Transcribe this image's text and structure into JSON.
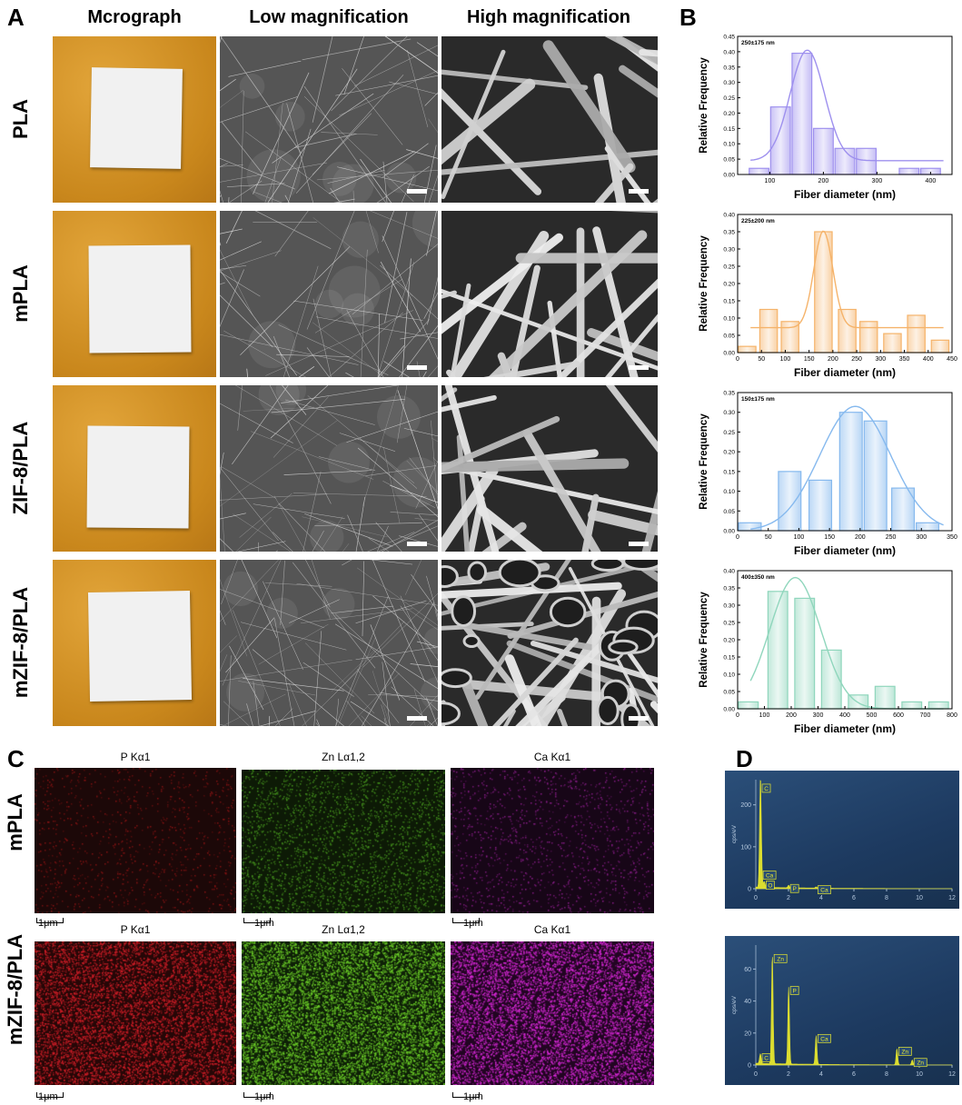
{
  "panel_letters": {
    "a": "A",
    "b": "B",
    "c": "C",
    "d": "D"
  },
  "panel_a": {
    "columns": [
      "Mcrograph",
      "Low magnification",
      "High magnification"
    ],
    "rows": [
      "PLA",
      "mPLA",
      "ZIF-8/PLA",
      "mZIF-8/PLA"
    ]
  },
  "panel_c": {
    "rows": [
      "mPLA",
      "mZIF-8/PLA"
    ],
    "maps": [
      "P Kα1",
      "Zn Lα1,2",
      "Ca Kα1"
    ],
    "scale_label": "1μm"
  },
  "chart_data": [
    {
      "type": "bar",
      "annotation": "250±175 nm",
      "xlabel": "Fiber diameter (nm)",
      "ylabel": "Relative Frequency",
      "color": "#9e90ee",
      "bin_width": 40,
      "x": [
        80,
        120,
        160,
        200,
        240,
        280,
        320,
        360,
        400
      ],
      "values": [
        0.02,
        0.22,
        0.395,
        0.15,
        0.085,
        0.085,
        0.0,
        0.02,
        0.02
      ],
      "xlim": [
        40,
        440
      ],
      "ylim": [
        0,
        0.45
      ],
      "xticks": [
        100,
        200,
        300,
        400
      ],
      "yticks": [
        0.0,
        0.05,
        0.1,
        0.15,
        0.2,
        0.25,
        0.3,
        0.35,
        0.4,
        0.45
      ],
      "fit": {
        "mu": 170,
        "sigma": 32,
        "amp": 0.36,
        "base": 0.045
      }
    },
    {
      "type": "bar",
      "annotation": "225±200 nm",
      "xlabel": "Fiber diameter (nm)",
      "ylabel": "Relative Frequency",
      "color": "#f5b36a",
      "bin_width": 40,
      "x": [
        20,
        65,
        110,
        180,
        230,
        275,
        325,
        375,
        425
      ],
      "values": [
        0.018,
        0.125,
        0.09,
        0.35,
        0.125,
        0.09,
        0.055,
        0.108,
        0.036
      ],
      "xlim": [
        0,
        450
      ],
      "ylim": [
        0,
        0.4
      ],
      "xticks": [
        0,
        50,
        100,
        150,
        200,
        250,
        300,
        350,
        400,
        450
      ],
      "yticks": [
        0.0,
        0.05,
        0.1,
        0.15,
        0.2,
        0.25,
        0.3,
        0.35,
        0.4
      ],
      "fit": {
        "mu": 180,
        "sigma": 20,
        "amp": 0.28,
        "base": 0.072
      }
    },
    {
      "type": "bar",
      "annotation": "150±175 nm",
      "xlabel": "Fiber diameter (nm)",
      "ylabel": "Relative Frequency",
      "color": "#86b9ee",
      "bin_width": 40,
      "x": [
        20,
        85,
        135,
        185,
        225,
        270,
        310
      ],
      "values": [
        0.02,
        0.15,
        0.128,
        0.3,
        0.278,
        0.108,
        0.02
      ],
      "xlim": [
        0,
        350
      ],
      "ylim": [
        0,
        0.35
      ],
      "xticks": [
        0,
        50,
        100,
        150,
        200,
        250,
        300,
        350
      ],
      "yticks": [
        0.0,
        0.05,
        0.1,
        0.15,
        0.2,
        0.25,
        0.3,
        0.35
      ],
      "fit": {
        "mu": 192,
        "sigma": 58,
        "amp": 0.315,
        "base": 0.0
      }
    },
    {
      "type": "bar",
      "annotation": "400±350 nm",
      "xlabel": "Fiber diameter (nm)",
      "ylabel": "Relative Frequency",
      "color": "#8fd6bc",
      "bin_width": 80,
      "x": [
        40,
        150,
        250,
        350,
        450,
        550,
        650,
        750
      ],
      "values": [
        0.02,
        0.34,
        0.32,
        0.17,
        0.04,
        0.065,
        0.02,
        0.02
      ],
      "xlim": [
        0,
        800
      ],
      "ylim": [
        0,
        0.4
      ],
      "xticks": [
        0,
        100,
        200,
        300,
        400,
        500,
        600,
        700,
        800
      ],
      "yticks": [
        0.0,
        0.05,
        0.1,
        0.15,
        0.2,
        0.25,
        0.3,
        0.35,
        0.4
      ],
      "fit": {
        "mu": 215,
        "sigma": 95,
        "amp": 0.38,
        "base": 0.0
      }
    },
    {
      "type": "line",
      "ylabel": "cps/eV",
      "xlim": [
        0,
        12
      ],
      "ylim": [
        0,
        260
      ],
      "xticks": [
        0,
        2,
        4,
        6,
        8,
        10,
        12
      ],
      "yticks": [
        0,
        100,
        200
      ],
      "color": "#e6e62e",
      "peaks": [
        {
          "label": "C",
          "x": 0.28,
          "y": 245
        },
        {
          "label": "Ca",
          "x": 0.34,
          "y": 38
        },
        {
          "label": "O",
          "x": 0.52,
          "y": 14
        },
        {
          "label": "P",
          "x": 2.01,
          "y": 6
        },
        {
          "label": "Ca",
          "x": 3.69,
          "y": 3
        }
      ]
    },
    {
      "type": "line",
      "ylabel": "cps/eV",
      "xlim": [
        0,
        12
      ],
      "ylim": [
        0,
        75
      ],
      "xticks": [
        0,
        2,
        4,
        6,
        8,
        10,
        12
      ],
      "yticks": [
        0,
        20,
        40,
        60
      ],
      "color": "#e6e62e",
      "peaks": [
        {
          "label": "C",
          "x": 0.28,
          "y": 6
        },
        {
          "label": "Zn",
          "x": 1.01,
          "y": 68
        },
        {
          "label": "P",
          "x": 2.01,
          "y": 48
        },
        {
          "label": "Ca",
          "x": 3.69,
          "y": 18
        },
        {
          "label": "Zn",
          "x": 8.63,
          "y": 10
        },
        {
          "label": "Zn",
          "x": 9.57,
          "y": 3
        }
      ]
    }
  ]
}
